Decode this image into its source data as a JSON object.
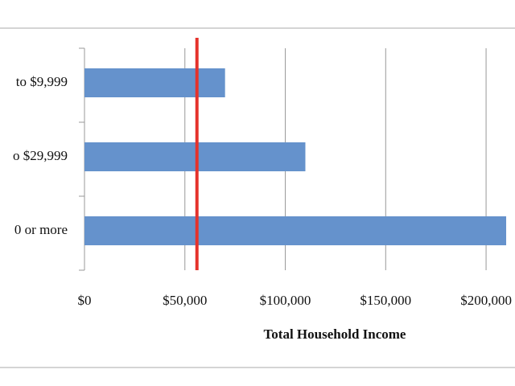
{
  "chart_data": {
    "type": "bar",
    "orientation": "horizontal",
    "x_label": "Total Household Income",
    "categories": [
      "to $9,999",
      "o $29,999",
      "0 or more"
    ],
    "values": [
      70000,
      110000,
      210000
    ],
    "color": "#6592cc",
    "xlim": [
      0,
      214400
    ],
    "xticks": [
      {
        "value": 0,
        "label": "$0"
      },
      {
        "value": 50000,
        "label": "$50,000"
      },
      {
        "value": 100000,
        "label": "$100,000"
      },
      {
        "value": 150000,
        "label": "$150,000"
      },
      {
        "value": 200000,
        "label": "$200,000"
      }
    ],
    "grid": true,
    "reference_line": {
      "value": 56000,
      "color": "#e5322b"
    }
  }
}
